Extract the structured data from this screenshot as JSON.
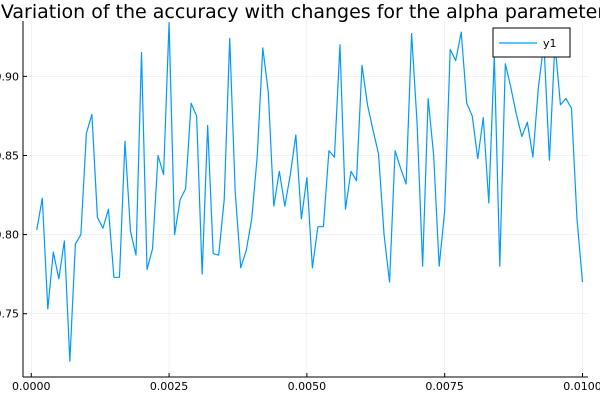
{
  "chart_data": {
    "type": "line",
    "title": "Variation of the accuracy with changes for the alpha parameter",
    "xlabel": "",
    "ylabel": "",
    "xlim": [
      -0.00015,
      0.0101
    ],
    "ylim": [
      0.71,
      0.935
    ],
    "x_ticks": [
      0.0,
      0.0025,
      0.005,
      0.0075,
      0.01
    ],
    "x_tick_labels": [
      "0.0000",
      "0.0025",
      "0.0050",
      "0.0075",
      "0.0100"
    ],
    "y_ticks": [
      0.75,
      0.8,
      0.85,
      0.9
    ],
    "y_tick_labels": [
      "0.75",
      "0.80",
      "0.85",
      "0.90"
    ],
    "grid": true,
    "legend_position": "top-right",
    "series_color": "#009AF9",
    "series": [
      {
        "name": "y1",
        "x": [
          0.0001,
          0.0002,
          0.0003,
          0.0004,
          0.0005,
          0.0006,
          0.0007,
          0.0008,
          0.0009,
          0.001,
          0.0011,
          0.0012,
          0.0013,
          0.0014,
          0.0015,
          0.0016,
          0.0017,
          0.0018,
          0.0019,
          0.002,
          0.0021,
          0.0022,
          0.0023,
          0.0024,
          0.0025,
          0.0026,
          0.0027,
          0.0028,
          0.0029,
          0.003,
          0.0031,
          0.0032,
          0.0033,
          0.0034,
          0.0035,
          0.0036,
          0.0037,
          0.0038,
          0.0039,
          0.004,
          0.0041,
          0.0042,
          0.0043,
          0.0044,
          0.0045,
          0.0046,
          0.0047,
          0.0048,
          0.0049,
          0.005,
          0.0051,
          0.0052,
          0.0053,
          0.0054,
          0.0055,
          0.0056,
          0.0057,
          0.0058,
          0.0059,
          0.006,
          0.0061,
          0.0062,
          0.0063,
          0.0064,
          0.0065,
          0.0066,
          0.0067,
          0.0068,
          0.0069,
          0.007,
          0.0071,
          0.0072,
          0.0073,
          0.0074,
          0.0075,
          0.0076,
          0.0077,
          0.0078,
          0.0079,
          0.008,
          0.0081,
          0.0082,
          0.0083,
          0.0084,
          0.0085,
          0.0086,
          0.0087,
          0.0088,
          0.0089,
          0.009,
          0.0091,
          0.0092,
          0.0093,
          0.0094,
          0.0095,
          0.0096,
          0.0097,
          0.0098,
          0.0099,
          0.01
        ],
        "values": [
          0.803,
          0.823,
          0.753,
          0.789,
          0.772,
          0.796,
          0.72,
          0.794,
          0.8,
          0.864,
          0.876,
          0.811,
          0.804,
          0.816,
          0.773,
          0.773,
          0.859,
          0.802,
          0.787,
          0.915,
          0.778,
          0.791,
          0.85,
          0.838,
          0.934,
          0.8,
          0.822,
          0.829,
          0.883,
          0.875,
          0.775,
          0.869,
          0.788,
          0.787,
          0.822,
          0.924,
          0.827,
          0.779,
          0.79,
          0.81,
          0.85,
          0.918,
          0.89,
          0.818,
          0.84,
          0.818,
          0.838,
          0.863,
          0.81,
          0.836,
          0.779,
          0.805,
          0.805,
          0.853,
          0.849,
          0.92,
          0.816,
          0.84,
          0.834,
          0.907,
          0.882,
          0.866,
          0.851,
          0.8,
          0.77,
          0.853,
          0.842,
          0.832,
          0.927,
          0.87,
          0.78,
          0.886,
          0.85,
          0.78,
          0.815,
          0.917,
          0.91,
          0.928,
          0.883,
          0.875,
          0.848,
          0.874,
          0.82,
          0.913,
          0.78,
          0.908,
          0.893,
          0.876,
          0.862,
          0.871,
          0.849,
          0.893,
          0.921,
          0.847,
          0.921,
          0.882,
          0.886,
          0.88,
          0.81,
          0.77
        ]
      }
    ]
  }
}
